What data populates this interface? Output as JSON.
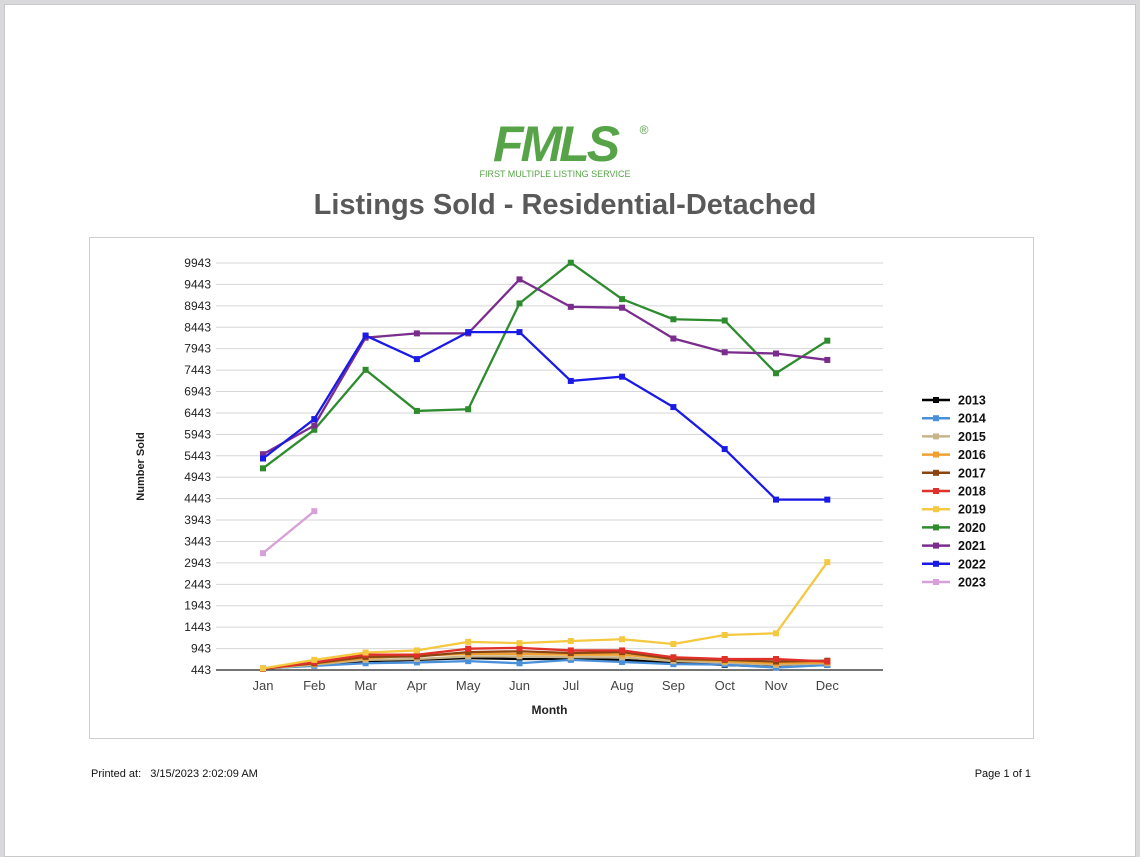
{
  "header": {
    "logo_text": "FMLS",
    "logo_registered": "®",
    "logo_subtext": "FIRST MULTIPLE LISTING SERVICE",
    "title": "Listings Sold - Residential-Detached"
  },
  "footer": {
    "printed_label": "Printed at:",
    "printed_value": "3/15/2023 2:02:09 AM",
    "page_label": "Page 1 of 1"
  },
  "colors": {
    "logo_green": "#56a447",
    "title_gray": "#595959"
  },
  "chart_data": {
    "type": "line",
    "xlabel": "Month",
    "ylabel": "Number Sold",
    "categories": [
      "Jan",
      "Feb",
      "Mar",
      "Apr",
      "May",
      "Jun",
      "Jul",
      "Aug",
      "Sep",
      "Oct",
      "Nov",
      "Dec"
    ],
    "yticks": [
      443,
      943,
      1443,
      1943,
      2443,
      2943,
      3443,
      3943,
      4443,
      4943,
      5443,
      5943,
      6443,
      6943,
      7443,
      7943,
      8443,
      8943,
      9443,
      9943
    ],
    "ylim": [
      443,
      9943
    ],
    "grid": true,
    "legend_position": "right",
    "series": [
      {
        "name": "2013",
        "color": "#000000",
        "values": [
          470,
          560,
          650,
          680,
          720,
          700,
          700,
          680,
          620,
          560,
          520,
          560
        ]
      },
      {
        "name": "2014",
        "color": "#4a90d9",
        "values": [
          480,
          540,
          600,
          620,
          650,
          600,
          680,
          630,
          580,
          570,
          500,
          560
        ]
      },
      {
        "name": "2015",
        "color": "#c8b48a",
        "values": [
          470,
          570,
          680,
          700,
          760,
          760,
          740,
          740,
          650,
          620,
          560,
          600
        ]
      },
      {
        "name": "2016",
        "color": "#f0a030",
        "values": [
          480,
          590,
          720,
          780,
          820,
          820,
          800,
          800,
          700,
          650,
          600,
          620
        ]
      },
      {
        "name": "2017",
        "color": "#8b4513",
        "values": [
          480,
          600,
          750,
          760,
          860,
          880,
          840,
          860,
          700,
          680,
          640,
          660
        ]
      },
      {
        "name": "2018",
        "color": "#e0302a",
        "values": [
          470,
          620,
          800,
          800,
          940,
          960,
          900,
          900,
          740,
          700,
          700,
          640
        ]
      },
      {
        "name": "2019",
        "color": "#f5c842",
        "values": [
          480,
          680,
          850,
          900,
          1100,
          1070,
          1120,
          1160,
          1050,
          1260,
          1300,
          2960
        ]
      },
      {
        "name": "2020",
        "color": "#2e8b2e",
        "values": [
          5150,
          6050,
          7450,
          6490,
          6530,
          9000,
          9950,
          9100,
          8630,
          8600,
          7370,
          8130
        ]
      },
      {
        "name": "2021",
        "color": "#7b2d8e",
        "values": [
          5480,
          6150,
          8200,
          8300,
          8300,
          9560,
          8920,
          8900,
          8180,
          7860,
          7830,
          7680
        ]
      },
      {
        "name": "2022",
        "color": "#1a1ae6",
        "values": [
          5380,
          6300,
          8250,
          7700,
          8330,
          8330,
          7190,
          7290,
          6580,
          5600,
          4420,
          4420
        ]
      },
      {
        "name": "2023",
        "color": "#d8a0d8",
        "values": [
          3170,
          4150,
          null,
          null,
          null,
          null,
          null,
          null,
          null,
          null,
          null,
          null
        ]
      }
    ]
  }
}
